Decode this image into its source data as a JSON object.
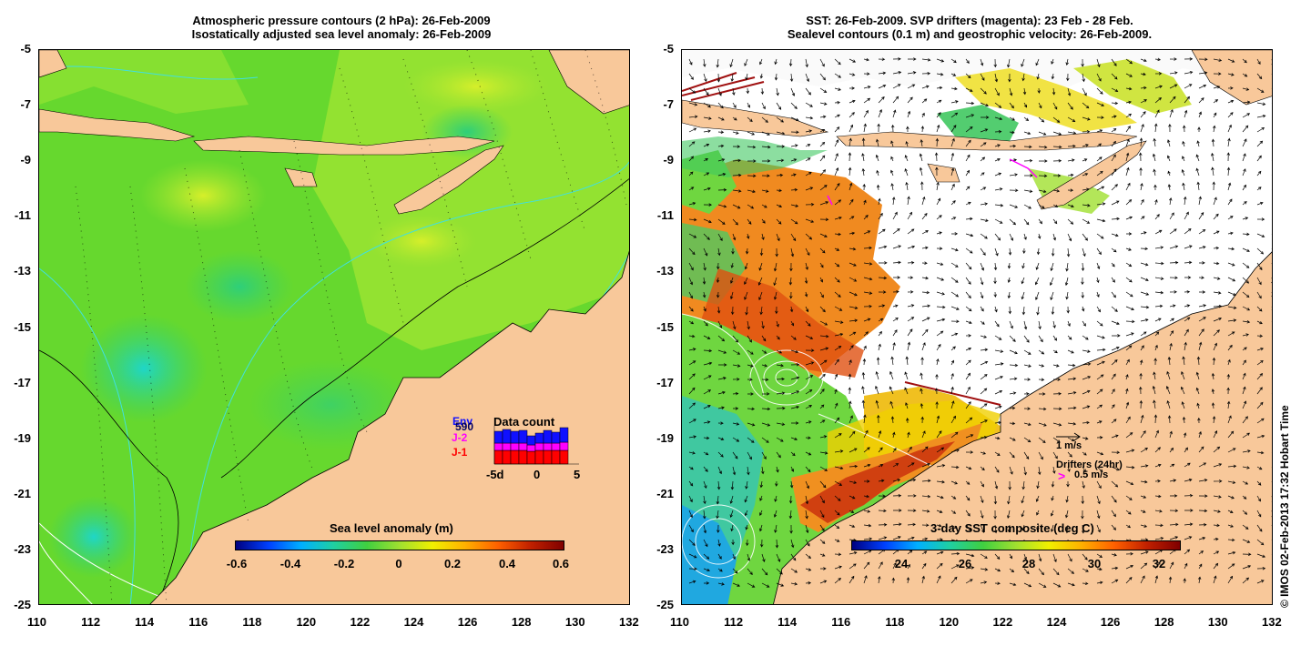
{
  "left_panel": {
    "title_line1": "Atmospheric pressure contours (2 hPa): 26-Feb-2009",
    "title_line2": "Isostatically adjusted sea level anomaly: 26-Feb-2009",
    "colorbar_title": "Sea level anomaly (m)",
    "colorbar_ticks": [
      "-0.6",
      "-0.4",
      "-0.2",
      "0",
      "0.2",
      "0.4",
      "0.6"
    ],
    "data_count": {
      "title": "Data count",
      "legend": [
        {
          "label": "Env",
          "color": "#1010ff"
        },
        {
          "label": "590",
          "color": "#000060"
        },
        {
          "label": "J-2",
          "color": "#ff00ff"
        },
        {
          "label": "J-1",
          "color": "#ff0000"
        }
      ],
      "x_ticks": [
        "-5d",
        "0",
        "5"
      ]
    }
  },
  "right_panel": {
    "title_line1": "SST: 26-Feb-2009. SVP drifters (magenta): 23 Feb - 28 Feb.",
    "title_line2": "Sealevel contours (0.1 m) and geostrophic velocity: 26-Feb-2009.",
    "colorbar_title": "3-day SST composite (deg C)",
    "colorbar_ticks": [
      "24",
      "26",
      "28",
      "30",
      "32"
    ],
    "velocity_scale_label": "1 m/s",
    "drifters_label": "Drifters (24hr)",
    "drifters_scale_label": "0.5 m/s"
  },
  "axes": {
    "y_ticks": [
      "-5",
      "-7",
      "-9",
      "-11",
      "-13",
      "-15",
      "-17",
      "-19",
      "-21",
      "-23",
      "-25"
    ],
    "x_ticks": [
      "110",
      "112",
      "114",
      "116",
      "118",
      "120",
      "122",
      "124",
      "126",
      "128",
      "130",
      "132"
    ]
  },
  "credit": "© IMOS 02-Feb-2013 17:32 Hobart Time",
  "colors": {
    "land": "#f8c89a",
    "sla_base": "#5fd630",
    "ocean_white": "#ffffff"
  }
}
